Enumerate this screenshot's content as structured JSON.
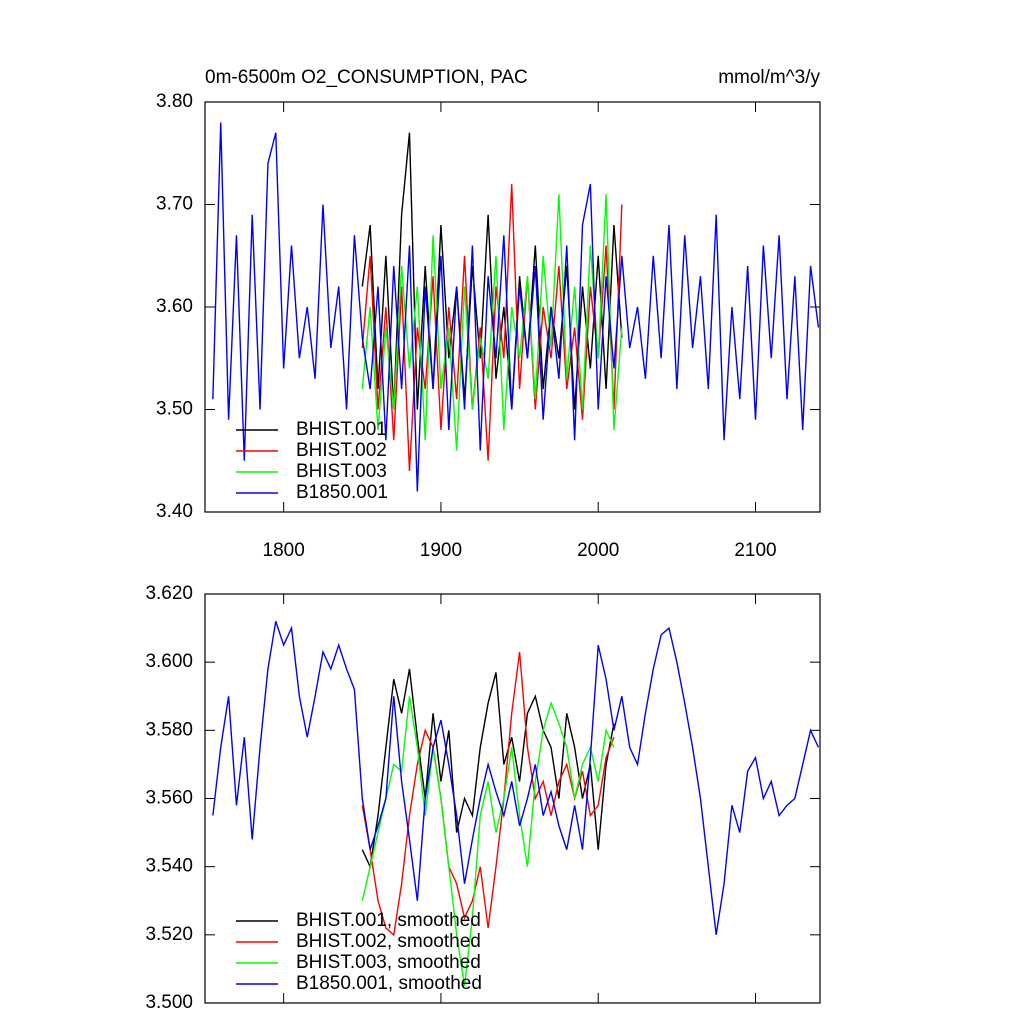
{
  "chart_data": [
    {
      "type": "line",
      "title": "0m-6500m O2_CONSUMPTION, PAC",
      "units": "mmol/m^3/y",
      "xlim": [
        1750,
        2141
      ],
      "xticks": [
        1800,
        1900,
        2000,
        2100
      ],
      "ylim": [
        3.4,
        3.8
      ],
      "yticks": [
        {
          "value": 3.4,
          "label": "3.40"
        },
        {
          "value": 3.5,
          "label": "3.50"
        },
        {
          "value": 3.6,
          "label": "3.60"
        },
        {
          "value": 3.7,
          "label": "3.70"
        },
        {
          "value": 3.8,
          "label": "3.80"
        }
      ],
      "legend": "lower left",
      "series": [
        {
          "name": "BHIST.001",
          "color": "#000000",
          "x": [
            1850,
            1855,
            1860,
            1865,
            1870,
            1875,
            1880,
            1885,
            1890,
            1895,
            1900,
            1905,
            1910,
            1915,
            1920,
            1925,
            1930,
            1935,
            1940,
            1945,
            1950,
            1955,
            1960,
            1965,
            1970,
            1975,
            1980,
            1985,
            1990,
            1995,
            2000,
            2005,
            2010,
            2015
          ],
          "values": [
            3.62,
            3.68,
            3.52,
            3.65,
            3.5,
            3.69,
            3.77,
            3.5,
            3.64,
            3.52,
            3.68,
            3.55,
            3.62,
            3.51,
            3.64,
            3.55,
            3.69,
            3.53,
            3.6,
            3.5,
            3.63,
            3.55,
            3.66,
            3.52,
            3.6,
            3.55,
            3.64,
            3.5,
            3.62,
            3.54,
            3.65,
            3.52,
            3.68,
            3.57
          ]
        },
        {
          "name": "BHIST.002",
          "color": "#ff0000",
          "x": [
            1850,
            1855,
            1860,
            1865,
            1870,
            1875,
            1880,
            1885,
            1890,
            1895,
            1900,
            1905,
            1910,
            1915,
            1920,
            1925,
            1930,
            1935,
            1940,
            1945,
            1950,
            1955,
            1960,
            1965,
            1970,
            1975,
            1980,
            1985,
            1990,
            1995,
            2000,
            2005,
            2010,
            2015
          ],
          "values": [
            3.56,
            3.65,
            3.5,
            3.6,
            3.47,
            3.62,
            3.44,
            3.58,
            3.52,
            3.63,
            3.48,
            3.6,
            3.51,
            3.65,
            3.5,
            3.58,
            3.45,
            3.62,
            3.55,
            3.72,
            3.52,
            3.63,
            3.5,
            3.6,
            3.55,
            3.64,
            3.52,
            3.58,
            3.49,
            3.62,
            3.55,
            3.66,
            3.5,
            3.7
          ]
        },
        {
          "name": "BHIST.003",
          "color": "#00ff00",
          "x": [
            1850,
            1855,
            1860,
            1865,
            1870,
            1875,
            1880,
            1885,
            1890,
            1895,
            1900,
            1905,
            1910,
            1915,
            1920,
            1925,
            1930,
            1935,
            1940,
            1945,
            1950,
            1955,
            1960,
            1965,
            1970,
            1975,
            1980,
            1985,
            1990,
            1995,
            2000,
            2005,
            2010,
            2015
          ],
          "values": [
            3.52,
            3.6,
            3.48,
            3.58,
            3.5,
            3.64,
            3.54,
            3.62,
            3.47,
            3.67,
            3.52,
            3.58,
            3.46,
            3.62,
            3.5,
            3.57,
            3.53,
            3.65,
            3.48,
            3.6,
            3.55,
            3.63,
            3.51,
            3.65,
            3.56,
            3.71,
            3.53,
            3.62,
            3.5,
            3.66,
            3.55,
            3.71,
            3.48,
            3.58
          ]
        },
        {
          "name": "B1850.001",
          "color": "#0000ff",
          "x": [
            1755,
            1760,
            1765,
            1770,
            1775,
            1780,
            1785,
            1790,
            1795,
            1800,
            1805,
            1810,
            1815,
            1820,
            1825,
            1830,
            1835,
            1840,
            1845,
            1850,
            1855,
            1860,
            1865,
            1870,
            1875,
            1880,
            1885,
            1890,
            1895,
            1900,
            1905,
            1910,
            1915,
            1920,
            1925,
            1930,
            1935,
            1940,
            1945,
            1950,
            1955,
            1960,
            1965,
            1970,
            1975,
            1980,
            1985,
            1990,
            1995,
            2000,
            2005,
            2010,
            2015,
            2020,
            2025,
            2030,
            2035,
            2040,
            2045,
            2050,
            2055,
            2060,
            2065,
            2070,
            2075,
            2080,
            2085,
            2090,
            2095,
            2100,
            2105,
            2110,
            2115,
            2120,
            2125,
            2130,
            2135,
            2140
          ],
          "values": [
            3.51,
            3.78,
            3.49,
            3.67,
            3.45,
            3.69,
            3.5,
            3.74,
            3.77,
            3.54,
            3.66,
            3.55,
            3.6,
            3.53,
            3.7,
            3.56,
            3.62,
            3.5,
            3.67,
            3.57,
            3.52,
            3.62,
            3.47,
            3.64,
            3.52,
            3.66,
            3.42,
            3.62,
            3.52,
            3.65,
            3.48,
            3.62,
            3.5,
            3.66,
            3.46,
            3.63,
            3.55,
            3.67,
            3.5,
            3.62,
            3.55,
            3.64,
            3.49,
            3.6,
            3.53,
            3.66,
            3.47,
            3.68,
            3.72,
            3.5,
            3.63,
            3.54,
            3.65,
            3.56,
            3.6,
            3.53,
            3.65,
            3.55,
            3.68,
            3.52,
            3.67,
            3.56,
            3.63,
            3.52,
            3.69,
            3.47,
            3.6,
            3.51,
            3.64,
            3.49,
            3.66,
            3.55,
            3.67,
            3.51,
            3.63,
            3.48,
            3.64,
            3.58
          ]
        }
      ]
    },
    {
      "type": "line",
      "xlim": [
        1750,
        2141
      ],
      "ylim": [
        3.5,
        3.62
      ],
      "yticks": [
        {
          "value": 3.5,
          "label": "3.500"
        },
        {
          "value": 3.52,
          "label": "3.520"
        },
        {
          "value": 3.54,
          "label": "3.540"
        },
        {
          "value": 3.56,
          "label": "3.560"
        },
        {
          "value": 3.58,
          "label": "3.580"
        },
        {
          "value": 3.6,
          "label": "3.600"
        },
        {
          "value": 3.62,
          "label": "3.620"
        }
      ],
      "legend": "lower left",
      "series": [
        {
          "name": "BHIST.001, smoothed",
          "color": "#000000",
          "x": [
            1850,
            1855,
            1860,
            1865,
            1870,
            1875,
            1880,
            1885,
            1890,
            1895,
            1900,
            1905,
            1910,
            1915,
            1920,
            1925,
            1930,
            1935,
            1940,
            1945,
            1950,
            1955,
            1960,
            1965,
            1970,
            1975,
            1980,
            1985,
            1990,
            1995,
            2000,
            2005,
            2010
          ],
          "values": [
            3.545,
            3.54,
            3.555,
            3.575,
            3.595,
            3.585,
            3.598,
            3.578,
            3.56,
            3.585,
            3.565,
            3.58,
            3.55,
            3.56,
            3.555,
            3.575,
            3.588,
            3.597,
            3.57,
            3.578,
            3.565,
            3.585,
            3.59,
            3.58,
            3.575,
            3.56,
            3.585,
            3.575,
            3.56,
            3.57,
            3.545,
            3.57,
            3.582
          ]
        },
        {
          "name": "BHIST.002, smoothed",
          "color": "#ff0000",
          "x": [
            1850,
            1855,
            1860,
            1865,
            1870,
            1875,
            1880,
            1885,
            1890,
            1895,
            1900,
            1905,
            1910,
            1915,
            1920,
            1925,
            1930,
            1935,
            1940,
            1945,
            1950,
            1955,
            1960,
            1965,
            1970,
            1975,
            1980,
            1985,
            1990,
            1995,
            2000,
            2005,
            2010
          ],
          "values": [
            3.558,
            3.545,
            3.53,
            3.522,
            3.52,
            3.535,
            3.555,
            3.57,
            3.58,
            3.575,
            3.56,
            3.54,
            3.535,
            3.525,
            3.53,
            3.54,
            3.522,
            3.54,
            3.56,
            3.585,
            3.603,
            3.575,
            3.56,
            3.565,
            3.555,
            3.565,
            3.57,
            3.56,
            3.568,
            3.555,
            3.558,
            3.572,
            3.578
          ]
        },
        {
          "name": "BHIST.003, smoothed",
          "color": "#00ff00",
          "x": [
            1850,
            1855,
            1860,
            1865,
            1870,
            1875,
            1880,
            1885,
            1890,
            1895,
            1900,
            1905,
            1910,
            1915,
            1920,
            1925,
            1930,
            1935,
            1940,
            1945,
            1950,
            1955,
            1960,
            1965,
            1970,
            1975,
            1980,
            1985,
            1990,
            1995,
            2000,
            2005,
            2010
          ],
          "values": [
            3.53,
            3.54,
            3.55,
            3.56,
            3.57,
            3.568,
            3.59,
            3.575,
            3.555,
            3.575,
            3.56,
            3.54,
            3.52,
            3.505,
            3.525,
            3.555,
            3.565,
            3.55,
            3.56,
            3.575,
            3.555,
            3.54,
            3.565,
            3.58,
            3.588,
            3.582,
            3.575,
            3.56,
            3.57,
            3.575,
            3.565,
            3.58,
            3.575
          ]
        },
        {
          "name": "B1850.001, smoothed",
          "color": "#0000ff",
          "x": [
            1755,
            1760,
            1765,
            1770,
            1775,
            1780,
            1785,
            1790,
            1795,
            1800,
            1805,
            1810,
            1815,
            1820,
            1825,
            1830,
            1835,
            1840,
            1845,
            1850,
            1855,
            1860,
            1865,
            1870,
            1875,
            1880,
            1885,
            1890,
            1895,
            1900,
            1905,
            1910,
            1915,
            1920,
            1925,
            1930,
            1935,
            1940,
            1945,
            1950,
            1955,
            1960,
            1965,
            1970,
            1975,
            1980,
            1985,
            1990,
            1995,
            2000,
            2005,
            2010,
            2015,
            2020,
            2025,
            2030,
            2035,
            2040,
            2045,
            2050,
            2055,
            2060,
            2065,
            2070,
            2075,
            2080,
            2085,
            2090,
            2095,
            2100,
            2105,
            2110,
            2115,
            2120,
            2125,
            2130,
            2135,
            2140
          ],
          "values": [
            3.555,
            3.575,
            3.59,
            3.558,
            3.578,
            3.548,
            3.575,
            3.598,
            3.612,
            3.605,
            3.61,
            3.59,
            3.578,
            3.59,
            3.603,
            3.598,
            3.605,
            3.598,
            3.592,
            3.56,
            3.545,
            3.552,
            3.56,
            3.59,
            3.565,
            3.548,
            3.53,
            3.56,
            3.575,
            3.583,
            3.57,
            3.555,
            3.535,
            3.548,
            3.56,
            3.57,
            3.562,
            3.555,
            3.565,
            3.552,
            3.56,
            3.57,
            3.555,
            3.562,
            3.552,
            3.545,
            3.558,
            3.545,
            3.572,
            3.605,
            3.595,
            3.58,
            3.59,
            3.575,
            3.57,
            3.585,
            3.598,
            3.608,
            3.61,
            3.6,
            3.588,
            3.575,
            3.56,
            3.54,
            3.52,
            3.535,
            3.558,
            3.55,
            3.568,
            3.572,
            3.56,
            3.565,
            3.555,
            3.558,
            3.56,
            3.57,
            3.58,
            3.575
          ]
        }
      ]
    }
  ]
}
